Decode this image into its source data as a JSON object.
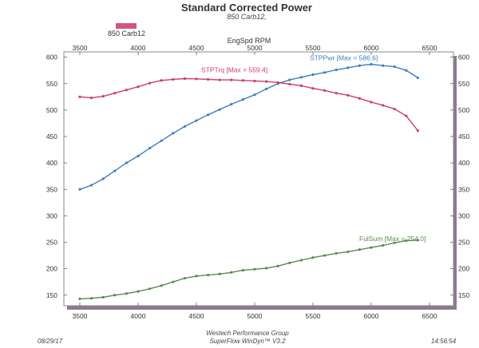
{
  "chart_data": {
    "type": "line",
    "title": "Standard Corrected Power",
    "subtitle": "850 Carb12,",
    "legend": {
      "label": "850 Carb12",
      "color": "#d2577a",
      "placement": "top-left"
    },
    "xlabel": "EngSpd RPM",
    "xlim": [
      3500,
      6500
    ],
    "ylim": [
      130,
      610
    ],
    "xticks": [
      3500,
      4000,
      4500,
      5000,
      5500,
      6000,
      6500
    ],
    "yticks": [
      150,
      200,
      250,
      300,
      350,
      400,
      450,
      500,
      550,
      600
    ],
    "x": [
      3500,
      3600,
      3700,
      3800,
      3900,
      4000,
      4100,
      4200,
      4300,
      4400,
      4500,
      4600,
      4700,
      4800,
      4900,
      5000,
      5100,
      5200,
      5300,
      5400,
      5500,
      5600,
      5700,
      5800,
      5900,
      6000,
      6100,
      6200,
      6300,
      6400
    ],
    "series": [
      {
        "name": "STPPwr",
        "label": "STPPwr [Max = 586.6]",
        "color": "#3f7fc0",
        "values": [
          350,
          358,
          370,
          385,
          400,
          413,
          428,
          442,
          456,
          469,
          480,
          491,
          501,
          511,
          520,
          529,
          540,
          550,
          557,
          562,
          567,
          571,
          576,
          580,
          584,
          586.6,
          584,
          582,
          575,
          561
        ]
      },
      {
        "name": "STPTrq",
        "label": "STPTrq [Max = 559.4]",
        "color": "#cc3d63",
        "values": [
          525,
          523,
          526,
          532,
          538,
          544,
          551,
          556,
          558,
          559.4,
          559,
          558,
          557,
          557,
          556,
          555,
          554,
          552,
          549,
          546,
          541,
          537,
          532,
          528,
          522,
          515,
          509,
          502,
          489,
          461
        ]
      },
      {
        "name": "FulSum",
        "label": "FulSum [Max = 254.0]",
        "color": "#5b8a4f",
        "values": [
          143,
          144,
          146,
          150,
          153,
          157,
          162,
          168,
          175,
          182,
          186,
          188,
          190,
          193,
          197,
          199,
          201,
          205,
          211,
          216,
          221,
          225,
          229,
          232,
          236,
          240,
          244,
          249,
          253,
          254
        ]
      }
    ],
    "footer": {
      "date": "08/29/17",
      "time": "14:56:54",
      "line1": "Westech Performance Group",
      "line2": "SuperFlow WinDyn™ V3.2"
    }
  }
}
